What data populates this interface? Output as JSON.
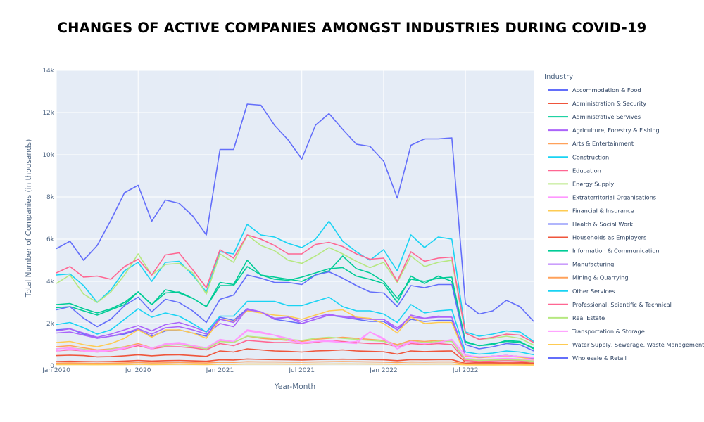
{
  "chart_data": {
    "type": "line",
    "title": "CHANGES OF ACTIVE COMPANIES AMONGST INDUSTRIES DURING COVID-19",
    "xlabel": "Year-Month",
    "ylabel": "Total Number of Companies (in thousands)",
    "legend_title": "Industry",
    "legend_position": "right",
    "grid": true,
    "plot_bgcolor": "#e5ecf6",
    "ylim": [
      0,
      14000
    ],
    "xlim": [
      "2020-01",
      "2022-12"
    ],
    "y_ticks": [
      {
        "value": 0,
        "label": "0"
      },
      {
        "value": 2000,
        "label": "2k"
      },
      {
        "value": 4000,
        "label": "4k"
      },
      {
        "value": 6000,
        "label": "6k"
      },
      {
        "value": 8000,
        "label": "8k"
      },
      {
        "value": 10000,
        "label": "10k"
      },
      {
        "value": 12000,
        "label": "12k"
      },
      {
        "value": 14000,
        "label": "14k"
      }
    ],
    "x_ticks": [
      {
        "value": "2020-01",
        "label": "Jan 2020"
      },
      {
        "value": "2020-07",
        "label": "Jul 2020"
      },
      {
        "value": "2021-01",
        "label": "Jan 2021"
      },
      {
        "value": "2021-07",
        "label": "Jul 2021"
      },
      {
        "value": "2022-01",
        "label": "Jan 2022"
      },
      {
        "value": "2022-07",
        "label": "Jul 2022"
      }
    ],
    "x": [
      "2020-01",
      "2020-02",
      "2020-03",
      "2020-04",
      "2020-05",
      "2020-06",
      "2020-07",
      "2020-08",
      "2020-09",
      "2020-10",
      "2020-11",
      "2020-12",
      "2021-01",
      "2021-02",
      "2021-03",
      "2021-04",
      "2021-05",
      "2021-06",
      "2021-07",
      "2021-08",
      "2021-09",
      "2021-10",
      "2021-11",
      "2021-12",
      "2022-01",
      "2022-02",
      "2022-03",
      "2022-04",
      "2022-05",
      "2022-06",
      "2022-07",
      "2022-08",
      "2022-09",
      "2022-10",
      "2022-11",
      "2022-12"
    ],
    "series": [
      {
        "name": "Accommodation & Food",
        "color": "#636efa",
        "values": [
          1700,
          1750,
          1500,
          1300,
          1400,
          1500,
          1700,
          1400,
          1650,
          1700,
          1550,
          1400,
          2300,
          2150,
          2700,
          2550,
          2200,
          2100,
          2000,
          2200,
          2400,
          2300,
          2200,
          2100,
          2100,
          1700,
          2200,
          2100,
          2150,
          2150,
          500,
          400,
          450,
          480,
          430,
          340
        ]
      },
      {
        "name": "Administration & Security",
        "color": "#EF553B",
        "values": [
          480,
          500,
          480,
          420,
          430,
          470,
          520,
          470,
          510,
          520,
          480,
          440,
          700,
          650,
          800,
          750,
          700,
          680,
          650,
          700,
          720,
          750,
          700,
          680,
          660,
          550,
          700,
          670,
          690,
          700,
          180,
          150,
          160,
          170,
          160,
          120
        ]
      },
      {
        "name": "Administrative Servives",
        "color": "#00cc96",
        "values": [
          2900,
          2950,
          2700,
          2500,
          2700,
          3000,
          3500,
          2900,
          3450,
          3500,
          3200,
          2800,
          3800,
          3800,
          4700,
          4300,
          4200,
          4100,
          4000,
          4300,
          4500,
          5200,
          4600,
          4400,
          4000,
          3200,
          4100,
          4000,
          4150,
          4200,
          1150,
          950,
          1050,
          1150,
          1100,
          850
        ]
      },
      {
        "name": "Agriculture, Forestry & Fishing",
        "color": "#ab63fa",
        "values": [
          1550,
          1600,
          1450,
          1300,
          1400,
          1550,
          1750,
          1500,
          1800,
          1850,
          1700,
          1500,
          2000,
          1850,
          2700,
          2550,
          2200,
          2300,
          2000,
          2200,
          2400,
          2350,
          2300,
          2200,
          2200,
          1800,
          2300,
          2250,
          2300,
          2300,
          500,
          400,
          450,
          480,
          430,
          350
        ]
      },
      {
        "name": "Arts & Entertainment",
        "color": "#FFA15A",
        "values": [
          900,
          950,
          850,
          750,
          800,
          900,
          1050,
          850,
          1000,
          1050,
          950,
          850,
          1200,
          1100,
          1400,
          1300,
          1250,
          1200,
          1150,
          1250,
          1300,
          1350,
          1300,
          1250,
          1200,
          1000,
          1200,
          1150,
          1200,
          1200,
          300,
          250,
          280,
          300,
          280,
          220
        ]
      },
      {
        "name": "Construction",
        "color": "#19d3f3",
        "values": [
          4300,
          4350,
          3800,
          3000,
          3600,
          4500,
          4900,
          4000,
          4900,
          4950,
          4300,
          3500,
          5400,
          5300,
          6700,
          6200,
          6100,
          5800,
          5600,
          6000,
          6850,
          5900,
          5400,
          5000,
          5500,
          4500,
          6200,
          5600,
          6100,
          6000,
          1600,
          1400,
          1500,
          1650,
          1600,
          1150
        ]
      },
      {
        "name": "Education",
        "color": "#FF6692",
        "values": [
          700,
          750,
          700,
          650,
          700,
          800,
          950,
          800,
          900,
          900,
          850,
          750,
          1050,
          950,
          1200,
          1150,
          1100,
          1100,
          1050,
          1100,
          1200,
          1150,
          1100,
          1050,
          1050,
          900,
          1050,
          1000,
          1050,
          1000,
          250,
          200,
          230,
          250,
          230,
          180
        ]
      },
      {
        "name": "Energy Supply",
        "color": "#B6E880",
        "values": [
          3900,
          4300,
          3400,
          3000,
          3500,
          4300,
          5300,
          4300,
          4800,
          4850,
          4400,
          3400,
          5300,
          4900,
          6200,
          5700,
          5450,
          5000,
          4850,
          5200,
          5600,
          5300,
          4950,
          4650,
          4900,
          3950,
          5200,
          4700,
          4900,
          5000,
          1550,
          1250,
          1300,
          1400,
          1300,
          980
        ]
      },
      {
        "name": "Extraterritorial Organisations",
        "color": "#FF97FF",
        "values": [
          700,
          800,
          700,
          650,
          720,
          820,
          1000,
          800,
          1050,
          1100,
          950,
          800,
          1200,
          1150,
          1650,
          1550,
          1450,
          1200,
          1050,
          1150,
          1200,
          1100,
          1150,
          1600,
          1300,
          800,
          1100,
          1050,
          1100,
          1200,
          350,
          300,
          320,
          350,
          320,
          250
        ]
      },
      {
        "name": "Financial & Insurance",
        "color": "#FECB52",
        "values": [
          1100,
          1150,
          1000,
          900,
          1050,
          1300,
          1700,
          1350,
          1700,
          1700,
          1550,
          1300,
          2200,
          2100,
          2600,
          2500,
          2400,
          2350,
          2200,
          2400,
          2600,
          2650,
          2300,
          2250,
          2000,
          1550,
          2300,
          2000,
          2050,
          2050,
          450,
          380,
          420,
          450,
          400,
          300
        ]
      },
      {
        "name": "Health & Social Work",
        "color": "#636efa",
        "values": [
          5550,
          5900,
          5000,
          5700,
          6900,
          8200,
          8550,
          6850,
          7850,
          7700,
          7100,
          6200,
          10250,
          10250,
          12400,
          12350,
          11400,
          10700,
          9800,
          11400,
          11950,
          11200,
          10500,
          10400,
          9700,
          7950,
          10450,
          10750,
          10750,
          10800,
          2950,
          2450,
          2600,
          3100,
          2800,
          2100
        ]
      },
      {
        "name": "Households as Employers",
        "color": "#EF553B",
        "values": [
          200,
          210,
          200,
          190,
          200,
          220,
          250,
          220,
          240,
          250,
          230,
          210,
          280,
          270,
          320,
          300,
          290,
          280,
          270,
          290,
          300,
          310,
          300,
          290,
          280,
          240,
          290,
          280,
          290,
          290,
          110,
          100,
          105,
          110,
          105,
          90
        ]
      },
      {
        "name": "Information & Communication",
        "color": "#00cc96",
        "values": [
          2750,
          2800,
          2600,
          2400,
          2650,
          2900,
          3500,
          2900,
          3600,
          3450,
          3200,
          2800,
          3950,
          3850,
          5000,
          4300,
          4100,
          4050,
          4200,
          4400,
          4600,
          4650,
          4250,
          4100,
          3900,
          3000,
          4250,
          3900,
          4250,
          4000,
          1100,
          950,
          1000,
          1200,
          1150,
          800
        ]
      },
      {
        "name": "Manufacturing",
        "color": "#ab63fa",
        "values": [
          1650,
          1750,
          1550,
          1350,
          1500,
          1700,
          1900,
          1650,
          1950,
          2050,
          1850,
          1600,
          2200,
          2050,
          2650,
          2550,
          2250,
          2300,
          2100,
          2300,
          2450,
          2300,
          2250,
          2200,
          2200,
          1700,
          2400,
          2250,
          2350,
          2300,
          500,
          400,
          450,
          480,
          430,
          360
        ]
      },
      {
        "name": "Mining & Quarrying",
        "color": "#FFA15A",
        "values": [
          120,
          130,
          120,
          110,
          120,
          130,
          150,
          130,
          140,
          150,
          140,
          130,
          170,
          160,
          190,
          180,
          180,
          175,
          170,
          180,
          190,
          200,
          190,
          180,
          175,
          150,
          180,
          175,
          180,
          180,
          80,
          70,
          75,
          80,
          75,
          60
        ]
      },
      {
        "name": "Other Services",
        "color": "#19d3f3",
        "values": [
          1950,
          2050,
          1800,
          1500,
          1700,
          2200,
          2700,
          2300,
          2500,
          2350,
          2000,
          1600,
          2350,
          2350,
          3050,
          3050,
          3050,
          2850,
          2850,
          3050,
          3250,
          2800,
          2600,
          2600,
          2450,
          2050,
          2900,
          2500,
          2600,
          2650,
          650,
          550,
          600,
          700,
          650,
          520
        ]
      },
      {
        "name": "Professional, Scientific & Technical",
        "color": "#FF6692",
        "values": [
          4400,
          4700,
          4200,
          4250,
          4100,
          4700,
          5050,
          4300,
          5250,
          5350,
          4550,
          3700,
          5500,
          5100,
          6200,
          6000,
          5700,
          5300,
          5300,
          5750,
          5850,
          5650,
          5300,
          5050,
          5100,
          4000,
          5400,
          4950,
          5100,
          5150,
          1550,
          1250,
          1350,
          1500,
          1450,
          1100
        ]
      },
      {
        "name": "Real Estate",
        "color": "#B6E880",
        "values": [
          800,
          850,
          780,
          700,
          780,
          880,
          1000,
          850,
          950,
          1000,
          900,
          800,
          1150,
          1100,
          1400,
          1350,
          1300,
          1250,
          1200,
          1300,
          1350,
          1300,
          1250,
          1200,
          1150,
          950,
          1150,
          1100,
          1150,
          1150,
          300,
          250,
          270,
          290,
          270,
          220
        ]
      },
      {
        "name": "Transportation & Storage",
        "color": "#FF97FF",
        "values": [
          800,
          850,
          750,
          700,
          750,
          850,
          1000,
          850,
          1000,
          1050,
          950,
          850,
          1250,
          1150,
          1700,
          1600,
          1450,
          1300,
          1100,
          1150,
          1150,
          1100,
          1050,
          1600,
          1250,
          900,
          1150,
          1050,
          1100,
          1250,
          500,
          420,
          450,
          480,
          440,
          380
        ]
      },
      {
        "name": "Water Supply, Sewerage, Waste Management",
        "color": "#FECB52",
        "values": [
          50,
          55,
          50,
          45,
          50,
          55,
          65,
          55,
          60,
          65,
          60,
          55,
          75,
          70,
          85,
          80,
          80,
          78,
          75,
          80,
          85,
          88,
          85,
          80,
          78,
          65,
          80,
          78,
          80,
          80,
          40,
          35,
          38,
          40,
          38,
          30
        ]
      },
      {
        "name": "Wholesale & Retail",
        "color": "#636efa",
        "values": [
          2650,
          2800,
          2250,
          1850,
          2200,
          2850,
          3250,
          2550,
          3150,
          3000,
          2600,
          2050,
          3150,
          3350,
          4300,
          4150,
          3950,
          3950,
          3850,
          4300,
          4450,
          4150,
          3800,
          3500,
          3450,
          2800,
          3800,
          3700,
          3850,
          3850,
          1000,
          800,
          900,
          1050,
          1000,
          700
        ]
      }
    ]
  }
}
